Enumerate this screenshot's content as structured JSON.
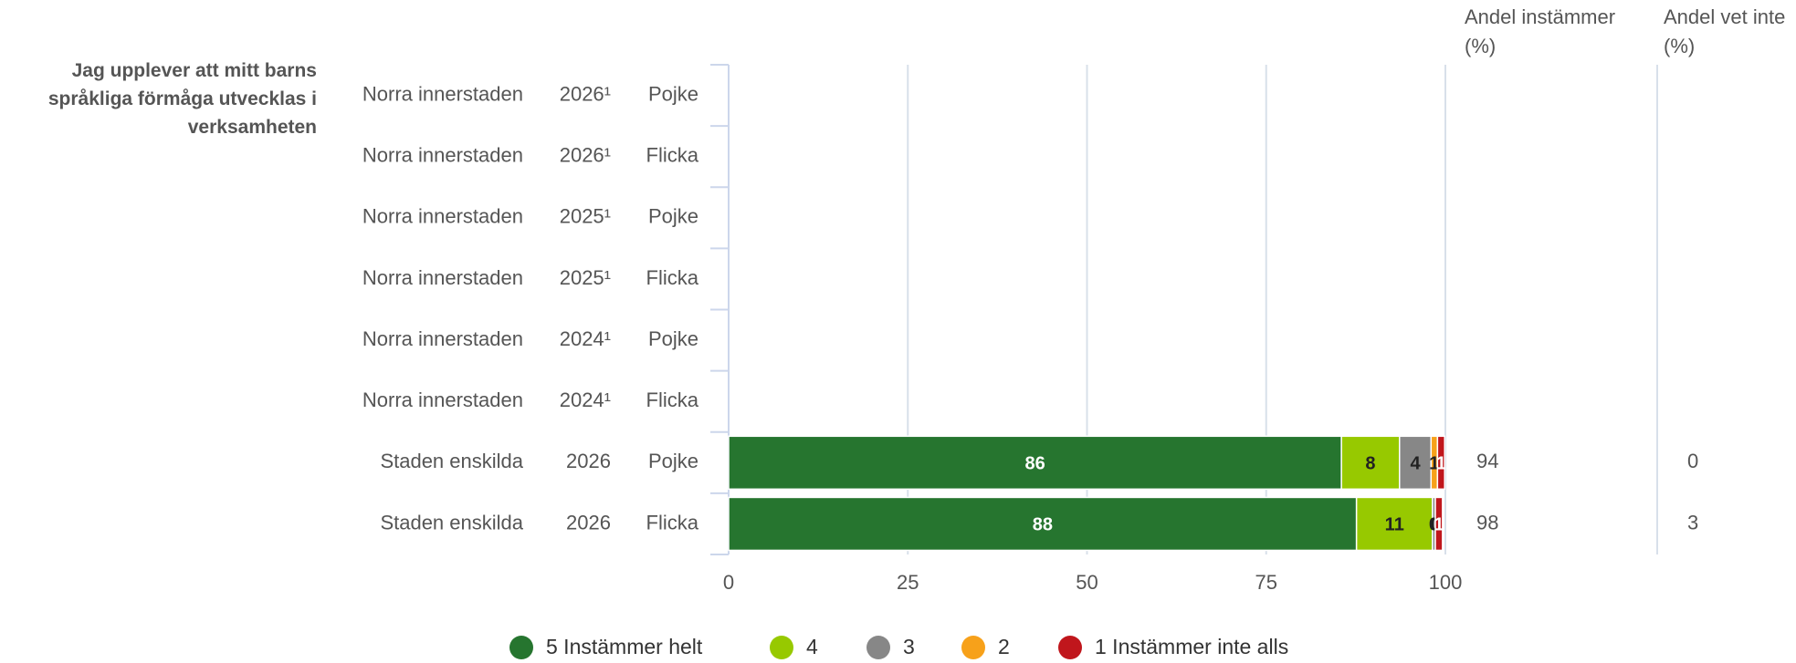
{
  "chart_data": {
    "type": "stacked-bar",
    "orientation": "horizontal",
    "group_label": "Jag upplever att mitt barns språkliga förmåga utvecklas i verksamheten",
    "rows": [
      {
        "area": "Norra innerstaden",
        "year": "2026¹",
        "gender": "Pojke"
      },
      {
        "area": "Norra innerstaden",
        "year": "2026¹",
        "gender": "Flicka"
      },
      {
        "area": "Norra innerstaden",
        "year": "2025¹",
        "gender": "Pojke"
      },
      {
        "area": "Norra innerstaden",
        "year": "2025¹",
        "gender": "Flicka"
      },
      {
        "area": "Norra innerstaden",
        "year": "2024¹",
        "gender": "Pojke"
      },
      {
        "area": "Norra innerstaden",
        "year": "2024¹",
        "gender": "Flicka"
      },
      {
        "area": "Staden enskilda",
        "year": "2026",
        "gender": "Pojke"
      },
      {
        "area": "Staden enskilda",
        "year": "2026",
        "gender": "Flicka"
      }
    ],
    "series": [
      {
        "name": "5 Instämmer helt",
        "color": "#26752f",
        "label_color": "#ffffff",
        "values": [
          null,
          null,
          null,
          null,
          null,
          null,
          85.5,
          87.6
        ],
        "value_labels": [
          null,
          null,
          null,
          null,
          null,
          null,
          "86",
          "88"
        ]
      },
      {
        "name": "4",
        "color": "#97c900",
        "label_color": "#222222",
        "values": [
          null,
          null,
          null,
          null,
          null,
          null,
          8.1,
          10.6
        ],
        "value_labels": [
          null,
          null,
          null,
          null,
          null,
          null,
          "8",
          "11"
        ]
      },
      {
        "name": "3",
        "color": "#878787",
        "label_color": "#222222",
        "values": [
          null,
          null,
          null,
          null,
          null,
          null,
          4.4,
          0.4
        ],
        "value_labels": [
          null,
          null,
          null,
          null,
          null,
          null,
          "4",
          "0"
        ]
      },
      {
        "name": "2",
        "color": "#f7a11a",
        "label_color": "#222222",
        "values": [
          null,
          null,
          null,
          null,
          null,
          null,
          0.9,
          0
        ],
        "value_labels": [
          null,
          null,
          null,
          null,
          null,
          null,
          "1",
          "0"
        ]
      },
      {
        "name": "1 Instämmer inte alls",
        "color": "#c0161c",
        "label_color": "#ffffff",
        "values": [
          null,
          null,
          null,
          null,
          null,
          null,
          1.0,
          1.0
        ],
        "value_labels": [
          null,
          null,
          null,
          null,
          null,
          null,
          "1",
          "1"
        ]
      }
    ],
    "xlim": [
      0,
      100
    ],
    "xticks": [
      0,
      25,
      50,
      75,
      100
    ],
    "grid": true,
    "extra_columns": [
      {
        "header": "Andel instämmer (%)",
        "values": [
          null,
          null,
          null,
          null,
          null,
          null,
          94,
          98
        ]
      },
      {
        "header": "Andel vet inte (%)",
        "values": [
          null,
          null,
          null,
          null,
          null,
          null,
          0,
          3
        ]
      }
    ],
    "legend": "bottom"
  }
}
